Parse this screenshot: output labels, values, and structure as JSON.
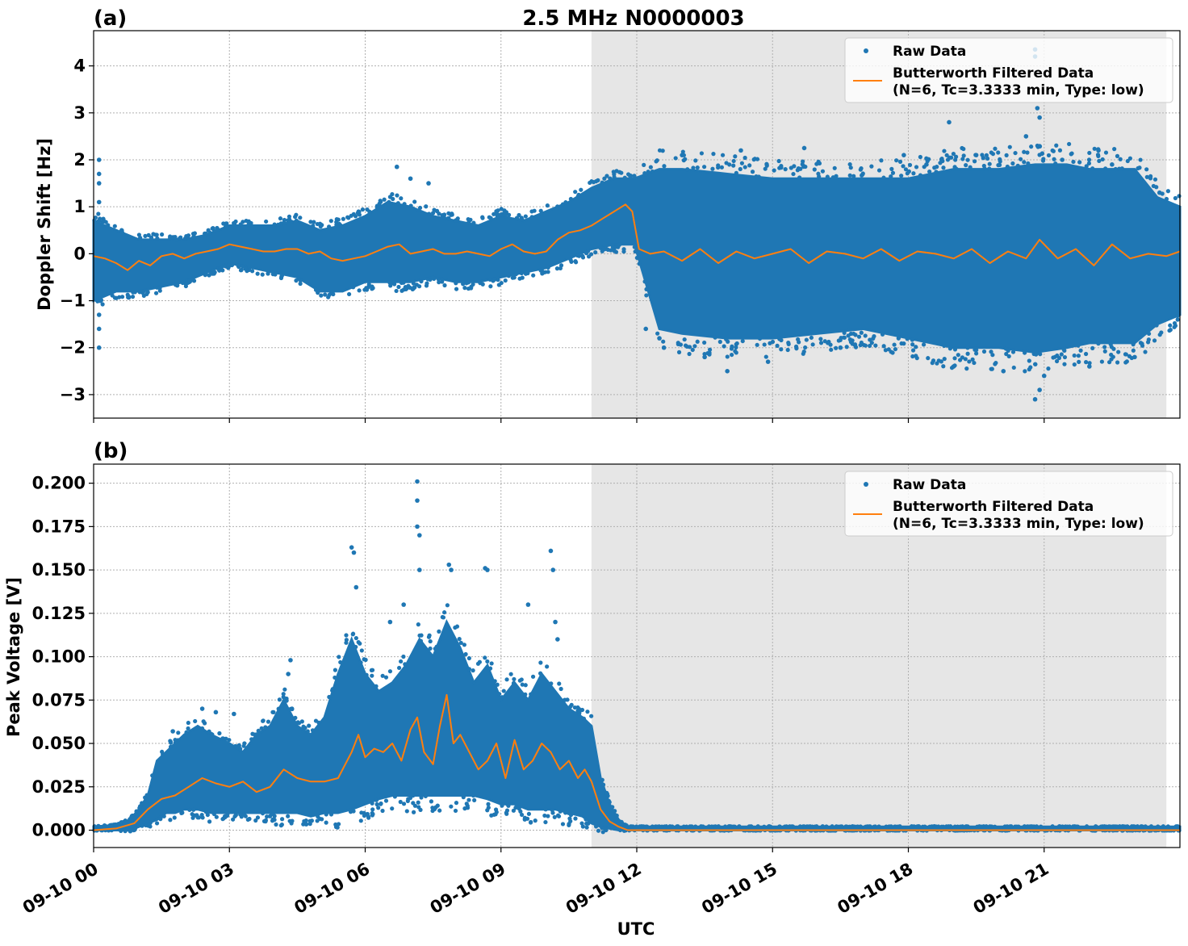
{
  "colors": {
    "raw": "#1f77b4",
    "filtered": "#ff7f0e",
    "shade": "#e6e6e6",
    "grid": "#b0b0b0",
    "axes": "#000000"
  },
  "figure": {
    "title": "2.5 MHz N0000003",
    "xlabel": "UTC"
  },
  "chart_data": [
    {
      "type": "scatter",
      "panel_label": "(a)",
      "title": "2.5 MHz N0000003",
      "ylabel": "Doppler Shift [Hz]",
      "xlabel": "",
      "x_unit": "hours since 09-10 00 UTC",
      "xlim": [
        0,
        24
      ],
      "ylim": [
        -3.5,
        4.75
      ],
      "yticks": [
        -3,
        -2,
        -1,
        0,
        1,
        2,
        3,
        4
      ],
      "ytick_labels": [
        "−3",
        "−2",
        "−1",
        "0",
        "1",
        "2",
        "3",
        "4"
      ],
      "grid": true,
      "legend_position": "upper right",
      "shaded_region": [
        11.0,
        23.7
      ],
      "series": [
        {
          "name": "Raw Data",
          "style": "points",
          "envelope": {
            "x": [
              0,
              0.5,
              1,
              1.5,
              2,
              2.5,
              3,
              3.5,
              4,
              4.5,
              5,
              5.5,
              6,
              6.5,
              7,
              7.5,
              8,
              8.5,
              9,
              9.5,
              10,
              10.5,
              11,
              11.5,
              11.95,
              12.5,
              13,
              14,
              15,
              16,
              17,
              18,
              19,
              20,
              20.8,
              21.5,
              22,
              22.5,
              23,
              23.5,
              24
            ],
            "upper": [
              0.7,
              0.5,
              0.3,
              0.3,
              0.3,
              0.4,
              0.6,
              0.6,
              0.6,
              0.7,
              0.5,
              0.6,
              0.8,
              1.1,
              1.0,
              0.8,
              0.7,
              0.6,
              0.8,
              0.7,
              0.9,
              1.1,
              1.4,
              1.6,
              1.6,
              1.8,
              1.8,
              1.7,
              1.6,
              1.6,
              1.6,
              1.6,
              1.8,
              1.8,
              1.9,
              1.9,
              1.8,
              1.8,
              1.8,
              1.2,
              1.0
            ],
            "lower": [
              -1.0,
              -0.8,
              -0.8,
              -0.7,
              -0.6,
              -0.4,
              -0.2,
              -0.3,
              -0.4,
              -0.5,
              -0.8,
              -0.8,
              -0.6,
              -0.6,
              -0.6,
              -0.5,
              -0.6,
              -0.6,
              -0.5,
              -0.4,
              -0.3,
              -0.1,
              0.1,
              0.2,
              0.2,
              -1.6,
              -1.7,
              -1.8,
              -1.8,
              -1.7,
              -1.6,
              -1.8,
              -2.0,
              -2.0,
              -2.1,
              -2.0,
              -1.9,
              -1.9,
              -1.9,
              -1.5,
              -1.3
            ]
          },
          "outliers": [
            [
              0.12,
              2.0
            ],
            [
              0.12,
              1.7
            ],
            [
              0.12,
              1.5
            ],
            [
              0.12,
              1.1
            ],
            [
              0.12,
              -2.0
            ],
            [
              0.12,
              -1.6
            ],
            [
              0.12,
              -1.3
            ],
            [
              6.7,
              1.85
            ],
            [
              7.0,
              1.6
            ],
            [
              7.4,
              1.5
            ],
            [
              12.2,
              -1.6
            ],
            [
              12.5,
              -1.8
            ],
            [
              12.6,
              -2.0
            ],
            [
              13.0,
              2.1
            ],
            [
              13.5,
              -2.2
            ],
            [
              14.0,
              -2.5
            ],
            [
              14.3,
              2.2
            ],
            [
              14.9,
              -2.3
            ],
            [
              15.7,
              2.25
            ],
            [
              16.5,
              -2.0
            ],
            [
              17.9,
              2.1
            ],
            [
              18.4,
              1.9
            ],
            [
              18.9,
              2.8
            ],
            [
              19.0,
              -2.4
            ],
            [
              19.5,
              2.1
            ],
            [
              20.1,
              -2.5
            ],
            [
              20.6,
              2.5
            ],
            [
              20.8,
              4.35
            ],
            [
              20.8,
              4.2
            ],
            [
              20.85,
              3.1
            ],
            [
              20.9,
              2.9
            ],
            [
              20.8,
              -3.1
            ],
            [
              20.9,
              -2.9
            ],
            [
              21.0,
              -2.6
            ],
            [
              21.4,
              2.0
            ],
            [
              22.0,
              -2.4
            ],
            [
              22.2,
              2.2
            ],
            [
              22.5,
              1.9
            ],
            [
              23.0,
              -2.2
            ],
            [
              23.55,
              1.3
            ]
          ]
        },
        {
          "name": "Butterworth Filtered Data",
          "legend_line2": "(N=6, Tc=3.3333 min, Type: low)",
          "style": "line",
          "x": [
            0,
            0.25,
            0.5,
            0.75,
            1.0,
            1.25,
            1.5,
            1.75,
            2.0,
            2.25,
            2.5,
            2.75,
            3.0,
            3.25,
            3.5,
            3.75,
            4.0,
            4.25,
            4.5,
            4.75,
            5.0,
            5.25,
            5.5,
            5.75,
            6.0,
            6.25,
            6.5,
            6.75,
            7.0,
            7.25,
            7.5,
            7.75,
            8.0,
            8.25,
            8.5,
            8.75,
            9.0,
            9.25,
            9.5,
            9.75,
            10.0,
            10.25,
            10.5,
            10.75,
            11.0,
            11.25,
            11.5,
            11.75,
            11.9,
            12.05,
            12.3,
            12.6,
            13.0,
            13.4,
            13.8,
            14.2,
            14.6,
            15.0,
            15.4,
            15.8,
            16.2,
            16.6,
            17.0,
            17.4,
            17.8,
            18.2,
            18.6,
            19.0,
            19.4,
            19.8,
            20.2,
            20.6,
            20.9,
            21.3,
            21.7,
            22.1,
            22.5,
            22.9,
            23.3,
            23.7,
            24.0
          ],
          "y": [
            -0.05,
            -0.1,
            -0.2,
            -0.35,
            -0.15,
            -0.25,
            -0.05,
            0.0,
            -0.1,
            0.0,
            0.05,
            0.1,
            0.2,
            0.15,
            0.1,
            0.05,
            0.05,
            0.1,
            0.1,
            0.0,
            0.05,
            -0.1,
            -0.15,
            -0.1,
            -0.05,
            0.05,
            0.15,
            0.2,
            0.0,
            0.05,
            0.1,
            0.0,
            0.0,
            0.05,
            0.0,
            -0.05,
            0.1,
            0.2,
            0.05,
            0.0,
            0.05,
            0.3,
            0.45,
            0.5,
            0.6,
            0.75,
            0.9,
            1.05,
            0.9,
            0.1,
            0.0,
            0.05,
            -0.15,
            0.1,
            -0.2,
            0.05,
            -0.1,
            0.0,
            0.1,
            -0.2,
            0.05,
            0.0,
            -0.1,
            0.1,
            -0.15,
            0.05,
            0.0,
            -0.1,
            0.1,
            -0.2,
            0.05,
            -0.1,
            0.3,
            -0.1,
            0.1,
            -0.25,
            0.2,
            -0.1,
            0.0,
            -0.05,
            0.05
          ]
        }
      ]
    },
    {
      "type": "scatter",
      "panel_label": "(b)",
      "ylabel": "Peak Voltage [V]",
      "xlabel": "UTC",
      "x_unit": "hours since 09-10 00 UTC",
      "xlim": [
        0,
        24
      ],
      "ylim": [
        -0.01,
        0.211
      ],
      "yticks": [
        0.0,
        0.025,
        0.05,
        0.075,
        0.1,
        0.125,
        0.15,
        0.175,
        0.2
      ],
      "ytick_labels": [
        "0.000",
        "0.025",
        "0.050",
        "0.075",
        "0.100",
        "0.125",
        "0.150",
        "0.175",
        "0.200"
      ],
      "xticks": [
        0,
        3,
        6,
        9,
        12,
        15,
        18,
        21
      ],
      "xtick_labels": [
        "09-10 00",
        "09-10 03",
        "09-10 06",
        "09-10 09",
        "09-10 12",
        "09-10 15",
        "09-10 18",
        "09-10 21"
      ],
      "grid": true,
      "legend_position": "upper right",
      "shaded_region": [
        11.0,
        23.7
      ],
      "series": [
        {
          "name": "Raw Data",
          "style": "points",
          "envelope": {
            "x": [
              0,
              0.5,
              0.8,
              1.0,
              1.2,
              1.4,
              1.6,
              1.8,
              2.0,
              2.3,
              2.6,
              3.0,
              3.3,
              3.6,
              3.9,
              4.2,
              4.5,
              4.8,
              5.1,
              5.4,
              5.7,
              6.0,
              6.3,
              6.6,
              6.9,
              7.2,
              7.5,
              7.8,
              8.1,
              8.4,
              8.7,
              9.0,
              9.3,
              9.6,
              9.9,
              10.2,
              10.5,
              10.8,
              11.0,
              11.2,
              11.4,
              11.6,
              11.8,
              12.0,
              24.0
            ],
            "upper": [
              0.002,
              0.003,
              0.006,
              0.012,
              0.02,
              0.04,
              0.045,
              0.05,
              0.055,
              0.06,
              0.055,
              0.05,
              0.045,
              0.055,
              0.06,
              0.075,
              0.06,
              0.055,
              0.065,
              0.09,
              0.11,
              0.09,
              0.08,
              0.085,
              0.095,
              0.11,
              0.1,
              0.12,
              0.105,
              0.085,
              0.095,
              0.075,
              0.085,
              0.075,
              0.09,
              0.08,
              0.07,
              0.065,
              0.06,
              0.03,
              0.015,
              0.006,
              0.002,
              0.002,
              0.002
            ],
            "lower": [
              0.0,
              0.0,
              0.0,
              0.002,
              0.004,
              0.006,
              0.01,
              0.01,
              0.012,
              0.012,
              0.01,
              0.01,
              0.01,
              0.01,
              0.01,
              0.01,
              0.01,
              0.008,
              0.01,
              0.01,
              0.012,
              0.015,
              0.018,
              0.02,
              0.02,
              0.02,
              0.02,
              0.02,
              0.02,
              0.02,
              0.018,
              0.015,
              0.015,
              0.012,
              0.012,
              0.012,
              0.01,
              0.008,
              0.004,
              0.002,
              0.001,
              0.0,
              0.0,
              0.0,
              0.0
            ]
          },
          "outliers": [
            [
              1.75,
              0.057
            ],
            [
              2.4,
              0.07
            ],
            [
              2.7,
              0.068
            ],
            [
              3.1,
              0.067
            ],
            [
              4.3,
              0.09
            ],
            [
              4.35,
              0.098
            ],
            [
              5.7,
              0.163
            ],
            [
              5.75,
              0.16
            ],
            [
              5.8,
              0.14
            ],
            [
              6.55,
              0.12
            ],
            [
              6.85,
              0.13
            ],
            [
              7.15,
              0.201
            ],
            [
              7.15,
              0.19
            ],
            [
              7.15,
              0.175
            ],
            [
              7.2,
              0.17
            ],
            [
              7.2,
              0.15
            ],
            [
              7.85,
              0.153
            ],
            [
              7.9,
              0.15
            ],
            [
              8.65,
              0.151
            ],
            [
              8.7,
              0.15
            ],
            [
              9.6,
              0.13
            ],
            [
              10.1,
              0.161
            ],
            [
              10.15,
              0.15
            ],
            [
              10.2,
              0.12
            ],
            [
              10.25,
              0.11
            ]
          ]
        },
        {
          "name": "Butterworth Filtered Data",
          "legend_line2": "(N=6, Tc=3.3333 min, Type: low)",
          "style": "line",
          "x": [
            0,
            0.5,
            0.9,
            1.2,
            1.5,
            1.8,
            2.1,
            2.4,
            2.7,
            3.0,
            3.3,
            3.6,
            3.9,
            4.2,
            4.5,
            4.8,
            5.1,
            5.4,
            5.7,
            5.85,
            6.0,
            6.2,
            6.4,
            6.6,
            6.8,
            7.0,
            7.15,
            7.3,
            7.5,
            7.65,
            7.8,
            7.95,
            8.1,
            8.3,
            8.5,
            8.7,
            8.9,
            9.1,
            9.3,
            9.5,
            9.7,
            9.9,
            10.1,
            10.3,
            10.5,
            10.7,
            10.85,
            11.0,
            11.2,
            11.4,
            11.6,
            11.8,
            12.0,
            24.0
          ],
          "y": [
            0.0,
            0.001,
            0.004,
            0.012,
            0.018,
            0.02,
            0.025,
            0.03,
            0.027,
            0.025,
            0.028,
            0.022,
            0.025,
            0.035,
            0.03,
            0.028,
            0.028,
            0.03,
            0.045,
            0.055,
            0.042,
            0.047,
            0.045,
            0.05,
            0.04,
            0.058,
            0.065,
            0.045,
            0.038,
            0.06,
            0.078,
            0.05,
            0.055,
            0.045,
            0.035,
            0.04,
            0.05,
            0.03,
            0.052,
            0.035,
            0.04,
            0.05,
            0.045,
            0.035,
            0.04,
            0.03,
            0.035,
            0.028,
            0.012,
            0.005,
            0.002,
            0.0,
            0.0,
            0.0
          ]
        }
      ]
    }
  ]
}
